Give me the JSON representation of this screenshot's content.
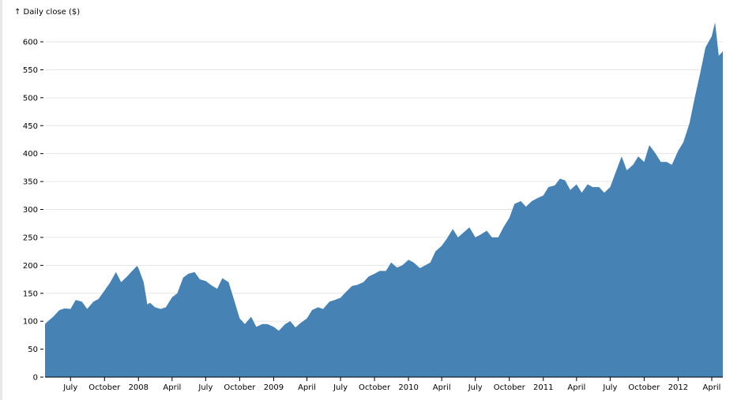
{
  "chart_data": {
    "type": "area",
    "y_label": "↑ Daily close ($)",
    "color": "#4682b4",
    "grid": true,
    "xlim": [
      "2007-04-23",
      "2012-05-01"
    ],
    "ylim": [
      0,
      650
    ],
    "yticks": [
      0,
      50,
      100,
      150,
      200,
      250,
      300,
      350,
      400,
      450,
      500,
      550,
      600
    ],
    "xticks": [
      {
        "value": "2007-07-01",
        "label": "July"
      },
      {
        "value": "2007-10-01",
        "label": "October"
      },
      {
        "value": "2008-01-01",
        "label": "2008"
      },
      {
        "value": "2008-04-01",
        "label": "April"
      },
      {
        "value": "2008-07-01",
        "label": "July"
      },
      {
        "value": "2008-10-01",
        "label": "October"
      },
      {
        "value": "2009-01-01",
        "label": "2009"
      },
      {
        "value": "2009-04-01",
        "label": "April"
      },
      {
        "value": "2009-07-01",
        "label": "July"
      },
      {
        "value": "2009-10-01",
        "label": "October"
      },
      {
        "value": "2010-01-01",
        "label": "2010"
      },
      {
        "value": "2010-04-01",
        "label": "April"
      },
      {
        "value": "2010-07-01",
        "label": "July"
      },
      {
        "value": "2010-10-01",
        "label": "October"
      },
      {
        "value": "2011-01-01",
        "label": "2011"
      },
      {
        "value": "2011-04-01",
        "label": "April"
      },
      {
        "value": "2011-07-01",
        "label": "July"
      },
      {
        "value": "2011-10-01",
        "label": "October"
      },
      {
        "value": "2012-01-01",
        "label": "2012"
      },
      {
        "value": "2012-04-01",
        "label": "April"
      }
    ],
    "x": [
      "2007-04-23",
      "2007-05-01",
      "2007-05-15",
      "2007-06-01",
      "2007-06-15",
      "2007-07-01",
      "2007-07-15",
      "2007-08-01",
      "2007-08-15",
      "2007-09-01",
      "2007-09-15",
      "2007-10-01",
      "2007-10-15",
      "2007-11-01",
      "2007-11-15",
      "2007-12-01",
      "2007-12-15",
      "2007-12-28",
      "2008-01-01",
      "2008-01-15",
      "2008-01-25",
      "2008-02-01",
      "2008-02-15",
      "2008-03-01",
      "2008-03-15",
      "2008-04-01",
      "2008-04-15",
      "2008-05-01",
      "2008-05-15",
      "2008-06-01",
      "2008-06-15",
      "2008-07-01",
      "2008-07-15",
      "2008-08-01",
      "2008-08-15",
      "2008-09-01",
      "2008-09-15",
      "2008-10-01",
      "2008-10-15",
      "2008-11-01",
      "2008-11-15",
      "2008-12-01",
      "2008-12-15",
      "2009-01-01",
      "2009-01-15",
      "2009-02-01",
      "2009-02-15",
      "2009-03-01",
      "2009-03-15",
      "2009-04-01",
      "2009-04-15",
      "2009-05-01",
      "2009-05-15",
      "2009-06-01",
      "2009-06-15",
      "2009-07-01",
      "2009-07-15",
      "2009-08-01",
      "2009-08-15",
      "2009-09-01",
      "2009-09-15",
      "2009-10-01",
      "2009-10-15",
      "2009-11-01",
      "2009-11-15",
      "2009-12-01",
      "2009-12-15",
      "2010-01-01",
      "2010-01-15",
      "2010-02-01",
      "2010-02-15",
      "2010-03-01",
      "2010-03-15",
      "2010-04-01",
      "2010-04-15",
      "2010-05-01",
      "2010-05-15",
      "2010-06-01",
      "2010-06-15",
      "2010-07-01",
      "2010-07-15",
      "2010-08-01",
      "2010-08-15",
      "2010-09-01",
      "2010-09-15",
      "2010-10-01",
      "2010-10-15",
      "2010-11-01",
      "2010-11-15",
      "2010-12-01",
      "2010-12-15",
      "2011-01-01",
      "2011-01-15",
      "2011-02-01",
      "2011-02-15",
      "2011-03-01",
      "2011-03-15",
      "2011-04-01",
      "2011-04-15",
      "2011-05-01",
      "2011-05-15",
      "2011-06-01",
      "2011-06-15",
      "2011-07-01",
      "2011-07-15",
      "2011-08-01",
      "2011-08-15",
      "2011-09-01",
      "2011-09-15",
      "2011-10-01",
      "2011-10-15",
      "2011-11-01",
      "2011-11-15",
      "2011-12-01",
      "2011-12-15",
      "2012-01-01",
      "2012-01-15",
      "2012-02-01",
      "2012-02-15",
      "2012-03-01",
      "2012-03-15",
      "2012-04-01",
      "2012-04-10",
      "2012-04-15",
      "2012-04-20",
      "2012-05-01"
    ],
    "values": [
      95,
      100,
      108,
      120,
      123,
      122,
      138,
      135,
      122,
      135,
      140,
      155,
      168,
      188,
      170,
      180,
      190,
      199,
      195,
      170,
      130,
      133,
      125,
      122,
      125,
      143,
      150,
      178,
      185,
      188,
      175,
      172,
      165,
      158,
      177,
      170,
      140,
      105,
      95,
      108,
      90,
      95,
      95,
      90,
      83,
      95,
      100,
      89,
      97,
      105,
      120,
      125,
      122,
      135,
      138,
      142,
      152,
      163,
      165,
      170,
      180,
      185,
      190,
      190,
      205,
      196,
      200,
      210,
      205,
      195,
      200,
      205,
      225,
      235,
      248,
      265,
      250,
      260,
      268,
      250,
      255,
      262,
      250,
      250,
      268,
      285,
      310,
      315,
      305,
      315,
      320,
      325,
      340,
      343,
      355,
      352,
      335,
      345,
      330,
      345,
      340,
      340,
      330,
      340,
      365,
      395,
      370,
      380,
      395,
      385,
      415,
      400,
      385,
      385,
      380,
      405,
      420,
      455,
      500,
      545,
      590,
      610,
      635,
      605,
      575,
      583
    ]
  }
}
